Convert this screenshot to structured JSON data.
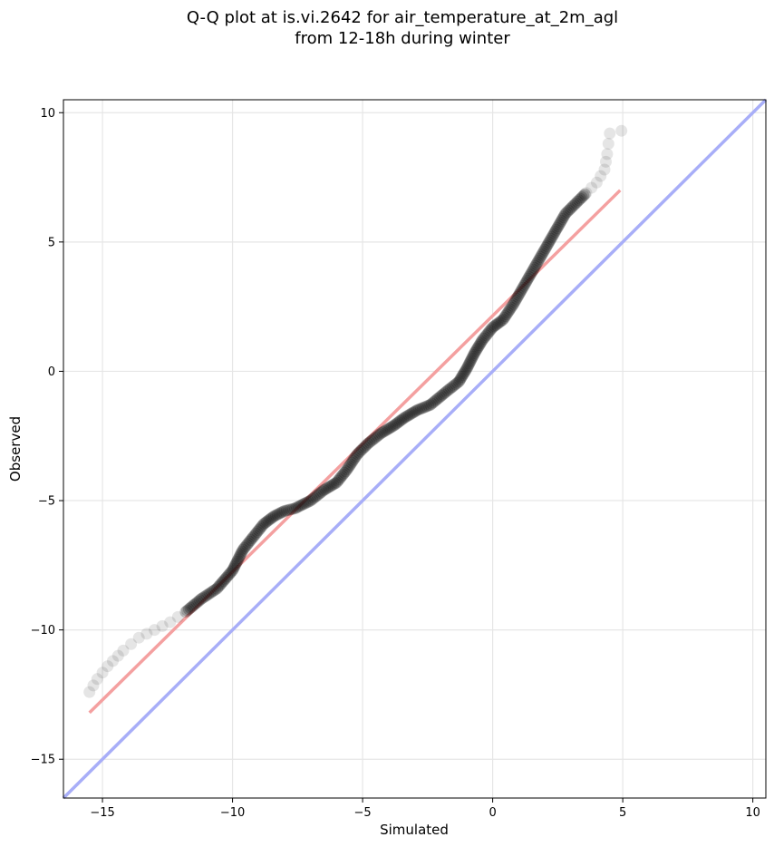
{
  "chart_data": {
    "type": "scatter",
    "title_lines": [
      "Q-Q plot at is.vi.2642 for air_temperature_at_2m_agl",
      "from 12-18h during winter"
    ],
    "xlabel": "Simulated",
    "ylabel": "Observed",
    "xlim": [
      -16.5,
      10.5
    ],
    "ylim": [
      -16.5,
      10.5
    ],
    "x_ticks": [
      -15,
      -10,
      -5,
      0,
      5,
      10
    ],
    "x_tick_labels": [
      "−15",
      "−10",
      "−5",
      "0",
      "5",
      "10"
    ],
    "y_ticks": [
      -15,
      -10,
      -5,
      0,
      5,
      10
    ],
    "y_tick_labels": [
      "−15",
      "−10",
      "−5",
      "0",
      "5",
      "10"
    ],
    "grid": true,
    "colors": {
      "points": "#000000",
      "fit_line": "#f4a0a0",
      "identity_line": "#a8aef8",
      "grid": "#e6e6e6"
    },
    "quantile_curve": [
      [
        -15.5,
        -12.4
      ],
      [
        -15.2,
        -11.9
      ],
      [
        -14.8,
        -11.4
      ],
      [
        -14.2,
        -10.8
      ],
      [
        -13.6,
        -10.3
      ],
      [
        -13.0,
        -10.0
      ],
      [
        -12.4,
        -9.7
      ],
      [
        -11.8,
        -9.3
      ],
      [
        -11.2,
        -8.8
      ],
      [
        -10.6,
        -8.4
      ],
      [
        -10.0,
        -7.7
      ],
      [
        -9.6,
        -6.9
      ],
      [
        -9.2,
        -6.4
      ],
      [
        -8.8,
        -5.9
      ],
      [
        -8.4,
        -5.6
      ],
      [
        -8.0,
        -5.4
      ],
      [
        -7.6,
        -5.3
      ],
      [
        -7.0,
        -5.0
      ],
      [
        -6.5,
        -4.6
      ],
      [
        -6.0,
        -4.3
      ],
      [
        -5.6,
        -3.8
      ],
      [
        -5.2,
        -3.2
      ],
      [
        -4.8,
        -2.8
      ],
      [
        -4.3,
        -2.4
      ],
      [
        -3.8,
        -2.1
      ],
      [
        -3.4,
        -1.8
      ],
      [
        -2.9,
        -1.5
      ],
      [
        -2.4,
        -1.3
      ],
      [
        -1.8,
        -0.8
      ],
      [
        -1.3,
        -0.4
      ],
      [
        -1.0,
        0.1
      ],
      [
        -0.7,
        0.7
      ],
      [
        -0.4,
        1.2
      ],
      [
        0.0,
        1.7
      ],
      [
        0.4,
        2.0
      ],
      [
        0.8,
        2.6
      ],
      [
        1.2,
        3.3
      ],
      [
        1.6,
        4.0
      ],
      [
        2.0,
        4.7
      ],
      [
        2.4,
        5.4
      ],
      [
        2.8,
        6.1
      ],
      [
        3.2,
        6.5
      ],
      [
        3.6,
        6.9
      ],
      [
        4.0,
        7.3
      ],
      [
        4.3,
        7.8
      ],
      [
        4.4,
        8.4
      ],
      [
        4.45,
        8.8
      ],
      [
        4.5,
        9.2
      ],
      [
        4.95,
        9.3
      ]
    ],
    "fit_line": {
      "x": [
        -15.5,
        4.9
      ],
      "y": [
        -13.2,
        7.0
      ]
    },
    "identity_line": {
      "x": [
        -16.5,
        10.5
      ],
      "y": [
        -16.5,
        10.5
      ]
    }
  }
}
